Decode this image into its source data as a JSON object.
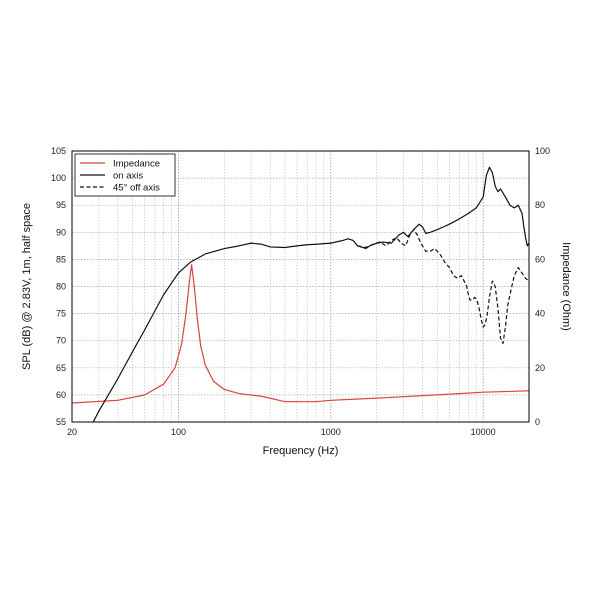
{
  "chart_data": {
    "type": "line",
    "title": "",
    "xlabel": "Frequency (Hz)",
    "ylabel": "SPL (dB) @ 2.83V, 1m, half space",
    "y2label": "Impedance (Ohm)",
    "xscale": "log",
    "xlim": [
      20,
      20000
    ],
    "ylim": [
      55,
      105
    ],
    "y2lim": [
      0,
      100
    ],
    "grid": true,
    "legend_position": "top-left",
    "x_tick_labels": [
      "20",
      "100",
      "1000",
      "10000"
    ],
    "y_tick_labels": [
      "55",
      "60",
      "65",
      "70",
      "75",
      "80",
      "85",
      "90",
      "95",
      "100",
      "105"
    ],
    "y2_tick_labels": [
      "0",
      "20",
      "40",
      "60",
      "80",
      "100"
    ],
    "series": [
      {
        "name": "Impedance",
        "axis": "right",
        "color": "#d9443a",
        "dash": "solid",
        "x": [
          20,
          40,
          60,
          80,
          95,
          105,
          112,
          118,
          122,
          127,
          133,
          140,
          150,
          170,
          200,
          250,
          350,
          500,
          800,
          1000,
          2000,
          5000,
          10000,
          20000
        ],
        "y": [
          7,
          8,
          10,
          14,
          20,
          29,
          40,
          52,
          58,
          50,
          38,
          28,
          21,
          15,
          12,
          10.5,
          9.5,
          7.5,
          7.5,
          8,
          8.8,
          10,
          11,
          11.5
        ]
      },
      {
        "name": "on axis",
        "axis": "left",
        "color": "#111111",
        "dash": "solid",
        "x": [
          27,
          30,
          40,
          50,
          60,
          70,
          80,
          100,
          120,
          150,
          200,
          250,
          300,
          350,
          400,
          500,
          600,
          700,
          800,
          1000,
          1200,
          1300,
          1400,
          1500,
          1700,
          1800,
          2000,
          2200,
          2500,
          2800,
          3000,
          3200,
          3500,
          3800,
          4000,
          4200,
          4500,
          5000,
          5500,
          6000,
          6500,
          7000,
          7500,
          8000,
          8500,
          9000,
          9500,
          10000,
          10500,
          11000,
          11500,
          12000,
          12500,
          13000,
          14000,
          15000,
          16000,
          17000,
          18000,
          18500,
          19000,
          19500,
          20000
        ],
        "y": [
          54.5,
          57,
          63,
          68,
          72,
          75.5,
          78.5,
          82.5,
          84.5,
          86,
          87,
          87.5,
          88,
          87.8,
          87.3,
          87.2,
          87.5,
          87.7,
          87.8,
          88,
          88.5,
          88.8,
          88.5,
          87.5,
          87,
          87.5,
          88,
          88.2,
          88,
          89.5,
          90,
          89.2,
          90.5,
          91.5,
          91,
          89.8,
          90,
          90.5,
          91,
          91.5,
          92,
          92.5,
          93,
          93.5,
          94,
          94.5,
          95.5,
          96.5,
          100.5,
          102,
          101,
          98.5,
          97.5,
          98,
          96.5,
          95,
          94.5,
          95,
          93.5,
          91,
          89,
          87.5,
          88
        ]
      },
      {
        "name": "45° off axis",
        "axis": "left",
        "color": "#111111",
        "dash": "dashed",
        "x": [
          1500,
          1700,
          1900,
          2100,
          2300,
          2500,
          2700,
          2900,
          3100,
          3300,
          3500,
          3700,
          3900,
          4200,
          4500,
          4800,
          5200,
          5600,
          6000,
          6400,
          6800,
          7200,
          7500,
          7800,
          8000,
          8200,
          8500,
          8800,
          9100,
          9400,
          9700,
          10000,
          10300,
          10600,
          11000,
          11500,
          12000,
          12500,
          13000,
          13500,
          14000,
          14500,
          15000,
          16000,
          17000,
          18000,
          19000,
          20000
        ],
        "y": [
          87.5,
          87.2,
          87.8,
          88.2,
          87.5,
          88.5,
          89,
          88,
          87.5,
          89.5,
          90.5,
          89.5,
          88,
          86.5,
          86.5,
          87,
          86,
          84.5,
          83.5,
          82,
          81.5,
          82,
          81,
          80,
          78.5,
          77.5,
          77.5,
          78,
          77.5,
          76,
          74,
          72.5,
          73,
          74.5,
          78,
          81,
          80,
          76,
          70.5,
          69.5,
          72.5,
          76.5,
          78.5,
          82,
          83.5,
          82.5,
          81.5,
          81
        ]
      }
    ]
  }
}
